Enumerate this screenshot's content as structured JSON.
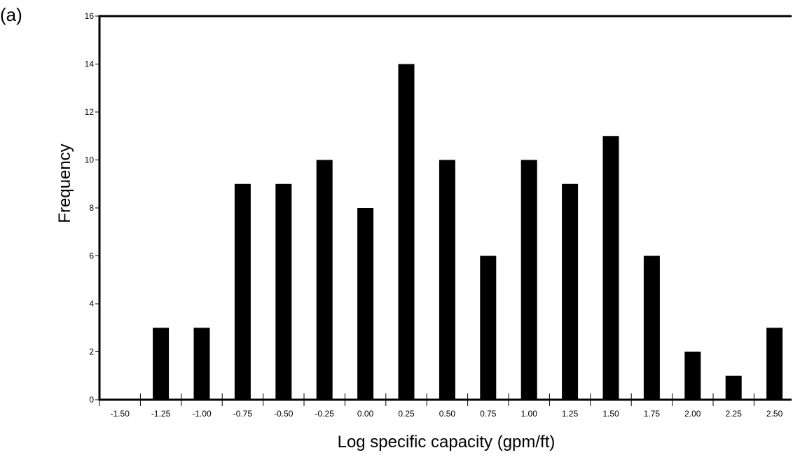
{
  "panel_label": "(a)",
  "chart_data": {
    "type": "bar",
    "title": "",
    "xlabel": "Log specific capacity (gpm/ft)",
    "ylabel": "Frequency",
    "x_ticks": [
      "-1.50",
      "-1.25",
      "-1.00",
      "-0.75",
      "-0.50",
      "-0.25",
      "0.00",
      "0.25",
      "0.50",
      "0.75",
      "1.00",
      "1.25",
      "1.50",
      "1.75",
      "2.00",
      "2.25",
      "2.50"
    ],
    "y_ticks": [
      "0",
      "2",
      "4",
      "6",
      "8",
      "10",
      "12",
      "14",
      "16"
    ],
    "categories": [
      "-1.25",
      "-1.00",
      "-0.75",
      "-0.50",
      "-0.25",
      "0.00",
      "0.25",
      "0.50",
      "0.75",
      "1.00",
      "1.25",
      "1.50",
      "1.75",
      "2.00",
      "2.25",
      "2.50"
    ],
    "values": [
      3,
      3,
      9,
      9,
      10,
      8,
      14,
      10,
      6,
      10,
      9,
      11,
      6,
      2,
      1,
      3
    ],
    "ylim": [
      0,
      16
    ],
    "grid": false,
    "legend": "none",
    "bar_color": "#000000"
  }
}
